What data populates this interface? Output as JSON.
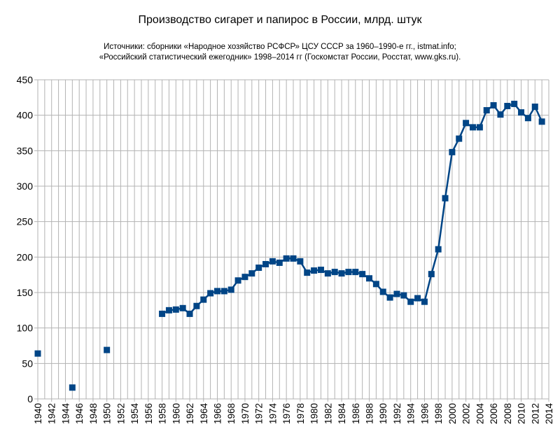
{
  "chart_data": {
    "type": "line",
    "title": "Производство сигарет и папирос в России, млрд. штук",
    "subtitle": [
      "Источники: сборники «Народное хозяйство РСФСР» ЦСУ СССР за 1960–1990-е гг., istmat.info;",
      "«Российский статистический ежегодник» 1998–2014 гг (Госкомстат России, Росстат, www.gks.ru)."
    ],
    "xlabel": "",
    "ylabel": "",
    "xlim": [
      1940,
      2014
    ],
    "ylim": [
      0,
      450
    ],
    "yticks": [
      0,
      50,
      100,
      150,
      200,
      250,
      300,
      350,
      400,
      450
    ],
    "xticks": [
      1940,
      1942,
      1944,
      1946,
      1948,
      1950,
      1952,
      1954,
      1956,
      1958,
      1960,
      1962,
      1964,
      1966,
      1968,
      1970,
      1972,
      1974,
      1976,
      1978,
      1980,
      1982,
      1984,
      1986,
      1988,
      1990,
      1992,
      1994,
      1996,
      1998,
      2000,
      2002,
      2004,
      2006,
      2008,
      2010,
      2012,
      2014
    ],
    "grid": true,
    "color": "#004586",
    "series": [
      {
        "x": [
          1940,
          1945,
          1950,
          1958,
          1959,
          1960,
          1961,
          1962,
          1963,
          1964,
          1965,
          1966,
          1967,
          1968,
          1969,
          1970,
          1971,
          1972,
          1973,
          1974,
          1975,
          1976,
          1977,
          1978,
          1979,
          1980,
          1981,
          1982,
          1983,
          1984,
          1985,
          1986,
          1987,
          1988,
          1989,
          1990,
          1991,
          1992,
          1993,
          1994,
          1995,
          1996,
          1997,
          1998,
          1999,
          2000,
          2001,
          2002,
          2003,
          2004,
          2005,
          2006,
          2007,
          2008,
          2009,
          2010,
          2011,
          2012,
          2013
        ],
        "values": [
          64,
          16,
          69,
          120,
          125,
          126,
          128,
          120,
          131,
          140,
          149,
          152,
          152,
          154,
          167,
          172,
          177,
          185,
          190,
          194,
          192,
          198,
          198,
          194,
          178,
          181,
          182,
          177,
          179,
          177,
          179,
          179,
          176,
          170,
          162,
          151,
          143,
          148,
          146,
          137,
          142,
          137,
          176,
          211,
          283,
          348,
          367,
          389,
          383,
          383,
          407,
          414,
          401,
          413,
          416,
          404,
          396,
          412,
          391
        ]
      }
    ]
  }
}
